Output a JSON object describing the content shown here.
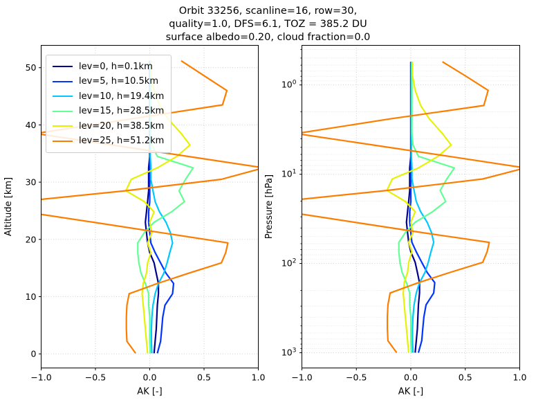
{
  "title": "Orbit 33256, scanline=16, row=30,\nquality=1.0, DFS=6.1, TOZ = 385.2 DU\nsurface albedo=0.20, cloud fraction=0.0",
  "chart_data": {
    "type": "line",
    "description": "Ozone profile averaging kernels (AK) for 6 retrieval levels, plotted against altitude (left panel, linear axis) and pressure (right panel, inverted log axis). Same kernel data in both panels.",
    "panels": [
      {
        "xlabel": "AK [-]",
        "ylabel": "Altitude [km]",
        "xlim": [
          -1.0,
          1.0
        ],
        "ylim": [
          -2.46,
          53.9
        ],
        "x_ticks": [
          -1.0,
          -0.5,
          0.0,
          0.5,
          1.0
        ],
        "x_tick_labels": [
          "−1.0",
          "−0.5",
          "0.0",
          "0.5",
          "1.0"
        ],
        "y_ticks": [
          0,
          10,
          20,
          30,
          40,
          50
        ],
        "y_tick_labels": [
          "0",
          "10",
          "20",
          "30",
          "40",
          "50"
        ],
        "yscale": "linear",
        "grid": "major, dotted lightgray"
      },
      {
        "xlabel": "AK [-]",
        "ylabel": "Pressure [hPa]",
        "xlim": [
          -1.0,
          1.0
        ],
        "ylim": [
          0.36,
          1480
        ],
        "y_inverted": true,
        "x_ticks": [
          -1.0,
          -0.5,
          0.0,
          0.5,
          1.0
        ],
        "x_tick_labels": [
          "−1.0",
          "−0.5",
          "0.0",
          "0.5",
          "1.0"
        ],
        "y_ticks": [
          1,
          10,
          100,
          1000
        ],
        "y_tick_exponents": [
          "0",
          "1",
          "2",
          "3"
        ],
        "y_minor_ticks": [
          0.4,
          0.5,
          0.6,
          0.7,
          0.8,
          0.9,
          2,
          3,
          4,
          5,
          6,
          7,
          8,
          9,
          20,
          30,
          40,
          50,
          60,
          70,
          80,
          90,
          200,
          300,
          400,
          500,
          600,
          700,
          800,
          900
        ],
        "yscale": "log",
        "grid": "major+minor, dotted lightgray"
      }
    ],
    "levels": {
      "altitude_km": [
        0.1,
        2.2,
        4.3,
        6.4,
        8.5,
        10.5,
        12.3,
        14.1,
        15.9,
        17.7,
        19.4,
        21.2,
        23.0,
        24.8,
        26.6,
        28.5,
        30.5,
        32.5,
        34.5,
        36.5,
        38.5,
        41.0,
        43.5,
        46.0,
        48.6,
        51.2
      ],
      "pressure_hPa": [
        998,
        732,
        538,
        396,
        291,
        214,
        164,
        126,
        97,
        74,
        58,
        45,
        34.5,
        26.3,
        20.2,
        15.2,
        11.3,
        8.5,
        6.3,
        4.7,
        3.5,
        2.4,
        1.7,
        1.15,
        0.79,
        0.55
      ]
    },
    "series": [
      {
        "label": "lev=0, h=0.1km",
        "color": "#00008f",
        "ak": [
          0.04,
          0.05,
          0.06,
          0.065,
          0.07,
          0.08,
          0.08,
          0.06,
          0.04,
          0.0,
          -0.02,
          -0.03,
          -0.04,
          -0.03,
          -0.02,
          -0.01,
          -0.01,
          -0.01,
          0.0,
          0.0,
          0.0,
          0.0,
          0.0,
          0.0,
          0.0,
          0.0
        ]
      },
      {
        "label": "lev=5, h=10.5km",
        "color": "#0033ff",
        "ak": [
          0.07,
          0.1,
          0.11,
          0.12,
          0.14,
          0.21,
          0.22,
          0.15,
          0.1,
          0.05,
          0.01,
          0.0,
          -0.01,
          -0.01,
          0.0,
          0.0,
          0.0,
          0.0,
          0.0,
          0.0,
          0.0,
          0.0,
          0.0,
          0.0,
          0.0,
          0.0
        ]
      },
      {
        "label": "lev=10, h=19.4km",
        "color": "#00c8ff",
        "ak": [
          0.02,
          0.015,
          0.015,
          0.02,
          0.03,
          0.05,
          0.08,
          0.13,
          0.16,
          0.185,
          0.21,
          0.19,
          0.15,
          0.09,
          0.05,
          0.03,
          0.01,
          0.01,
          0.005,
          0.005,
          0.005,
          0.005,
          0.005,
          0.005,
          0.005,
          0.005
        ]
      },
      {
        "label": "lev=15, h=28.5km",
        "color": "#63ff95",
        "ak": [
          0.005,
          0.0,
          0.0,
          0.0,
          -0.01,
          -0.01,
          -0.04,
          -0.08,
          -0.1,
          -0.11,
          -0.11,
          -0.05,
          0.04,
          0.2,
          0.32,
          0.27,
          0.33,
          0.4,
          0.07,
          0.02,
          0.01,
          0.01,
          0.01,
          0.01,
          0.01,
          0.01
        ]
      },
      {
        "label": "lev=20, h=38.5km",
        "color": "#e6f205",
        "ak": [
          -0.02,
          -0.03,
          -0.04,
          -0.05,
          -0.06,
          -0.07,
          -0.06,
          -0.03,
          -0.02,
          0.01,
          -0.02,
          0.02,
          0.0,
          0.04,
          -0.05,
          -0.22,
          -0.17,
          0.07,
          0.25,
          0.37,
          0.29,
          0.17,
          0.09,
          0.04,
          0.015,
          0.015
        ]
      },
      {
        "label": "lev=25, h=51.2km",
        "color": "#fc7e00",
        "ak": [
          -0.13,
          -0.21,
          -0.215,
          -0.215,
          -0.21,
          -0.19,
          0.07,
          0.36,
          0.66,
          0.7,
          0.72,
          0.1,
          -0.52,
          -1.15,
          -1.2,
          -0.22,
          0.66,
          1.05,
          0.35,
          -0.35,
          -1.05,
          -0.19,
          0.67,
          0.71,
          0.5,
          0.29
        ]
      }
    ],
    "legend_position": "upper left"
  },
  "colors": {
    "grid_major": "#c9c9c9",
    "grid_minor": "#dadada",
    "spine": "#000000",
    "text": "#000000"
  }
}
